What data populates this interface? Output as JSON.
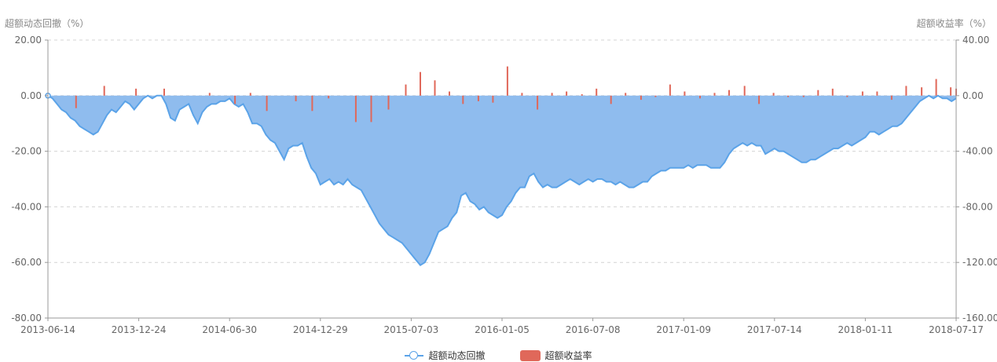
{
  "chart_data": {
    "type": "line",
    "left_axis": {
      "label": "超额动态回撤（%）",
      "ticks": [
        "20.00",
        "0.00",
        "-20.00",
        "-40.00",
        "-60.00",
        "-80.00"
      ],
      "range": [
        -80,
        20
      ]
    },
    "right_axis": {
      "label": "超额收益率（%）",
      "ticks": [
        "40.00",
        "0.00",
        "-40.00",
        "-80.00",
        "-120.00",
        "-160.00"
      ],
      "range": [
        -160,
        40
      ]
    },
    "x_ticks": [
      "2013-06-14",
      "2013-12-24",
      "2014-06-30",
      "2014-12-29",
      "2015-07-03",
      "2016-01-05",
      "2016-07-08",
      "2017-01-09",
      "2017-07-14",
      "2018-01-11",
      "2018-07-17"
    ],
    "grid": "horizontal-dashed",
    "legend_placement": "bottom-center",
    "series": [
      {
        "name": "超额动态回撤",
        "kind": "area",
        "axis": "left",
        "color": "#5ba3e8",
        "fill": "#8fbcee",
        "points": [
          [
            0,
            0
          ],
          [
            0.5,
            -1
          ],
          [
            1,
            -3
          ],
          [
            1.5,
            -5
          ],
          [
            2,
            -6
          ],
          [
            2.5,
            -8
          ],
          [
            3,
            -9
          ],
          [
            3.5,
            -11
          ],
          [
            4,
            -12
          ],
          [
            4.5,
            -13
          ],
          [
            5,
            -14
          ],
          [
            5.5,
            -13
          ],
          [
            6,
            -10
          ],
          [
            6.5,
            -7
          ],
          [
            7,
            -5
          ],
          [
            7.5,
            -6
          ],
          [
            8,
            -4
          ],
          [
            8.5,
            -2
          ],
          [
            9,
            -3
          ],
          [
            9.5,
            -5
          ],
          [
            10,
            -3
          ],
          [
            10.5,
            -1
          ],
          [
            11,
            0
          ],
          [
            11.5,
            -1
          ],
          [
            12,
            0
          ],
          [
            12.5,
            0
          ],
          [
            13,
            -3
          ],
          [
            13.5,
            -8
          ],
          [
            14,
            -9
          ],
          [
            14.5,
            -5
          ],
          [
            15,
            -4
          ],
          [
            15.5,
            -3
          ],
          [
            16,
            -7
          ],
          [
            16.5,
            -10
          ],
          [
            17,
            -6
          ],
          [
            17.5,
            -4
          ],
          [
            18,
            -3
          ],
          [
            18.5,
            -3
          ],
          [
            19,
            -2
          ],
          [
            19.5,
            -2
          ],
          [
            20,
            -1
          ],
          [
            20.5,
            -3
          ],
          [
            21,
            -4
          ],
          [
            21.5,
            -3
          ],
          [
            22,
            -6
          ],
          [
            22.5,
            -10
          ],
          [
            23,
            -10
          ],
          [
            23.5,
            -11
          ],
          [
            24,
            -14
          ],
          [
            24.5,
            -16
          ],
          [
            25,
            -17
          ],
          [
            25.5,
            -20
          ],
          [
            26,
            -23
          ],
          [
            26.5,
            -19
          ],
          [
            27,
            -18
          ],
          [
            27.5,
            -18
          ],
          [
            28,
            -17
          ],
          [
            28.5,
            -22
          ],
          [
            29,
            -26
          ],
          [
            29.5,
            -28
          ],
          [
            30,
            -32
          ],
          [
            30.5,
            -31
          ],
          [
            31,
            -30
          ],
          [
            31.5,
            -32
          ],
          [
            32,
            -31
          ],
          [
            32.5,
            -32
          ],
          [
            33,
            -30
          ],
          [
            33.5,
            -32
          ],
          [
            34,
            -33
          ],
          [
            34.5,
            -34
          ],
          [
            35,
            -37
          ],
          [
            35.5,
            -40
          ],
          [
            36,
            -43
          ],
          [
            36.5,
            -46
          ],
          [
            37,
            -48
          ],
          [
            37.5,
            -50
          ],
          [
            38,
            -51
          ],
          [
            38.5,
            -52
          ],
          [
            39,
            -53
          ],
          [
            39.5,
            -55
          ],
          [
            40,
            -57
          ],
          [
            40.5,
            -59
          ],
          [
            41,
            -61
          ],
          [
            41.5,
            -60
          ],
          [
            42,
            -57
          ],
          [
            42.5,
            -53
          ],
          [
            43,
            -49
          ],
          [
            43.5,
            -48
          ],
          [
            44,
            -47
          ],
          [
            44.5,
            -44
          ],
          [
            45,
            -42
          ],
          [
            45.5,
            -36
          ],
          [
            46,
            -35
          ],
          [
            46.5,
            -38
          ],
          [
            47,
            -39
          ],
          [
            47.5,
            -41
          ],
          [
            48,
            -40
          ],
          [
            48.5,
            -42
          ],
          [
            49,
            -43
          ],
          [
            49.5,
            -44
          ],
          [
            50,
            -43
          ],
          [
            50.5,
            -40
          ],
          [
            51,
            -38
          ],
          [
            51.5,
            -35
          ],
          [
            52,
            -33
          ],
          [
            52.5,
            -33
          ],
          [
            53,
            -29
          ],
          [
            53.5,
            -28
          ],
          [
            54,
            -31
          ],
          [
            54.5,
            -33
          ],
          [
            55,
            -32
          ],
          [
            55.5,
            -33
          ],
          [
            56,
            -33
          ],
          [
            56.5,
            -32
          ],
          [
            57,
            -31
          ],
          [
            57.5,
            -30
          ],
          [
            58,
            -31
          ],
          [
            58.5,
            -32
          ],
          [
            59,
            -31
          ],
          [
            59.5,
            -30
          ],
          [
            60,
            -31
          ],
          [
            60.5,
            -30
          ],
          [
            61,
            -30
          ],
          [
            61.5,
            -31
          ],
          [
            62,
            -31
          ],
          [
            62.5,
            -32
          ],
          [
            63,
            -31
          ],
          [
            63.5,
            -32
          ],
          [
            64,
            -33
          ],
          [
            64.5,
            -33
          ],
          [
            65,
            -32
          ],
          [
            65.5,
            -31
          ],
          [
            66,
            -31
          ],
          [
            66.5,
            -29
          ],
          [
            67,
            -28
          ],
          [
            67.5,
            -27
          ],
          [
            68,
            -27
          ],
          [
            68.5,
            -26
          ],
          [
            69,
            -26
          ],
          [
            69.5,
            -26
          ],
          [
            70,
            -26
          ],
          [
            70.5,
            -25
          ],
          [
            71,
            -26
          ],
          [
            71.5,
            -25
          ],
          [
            72,
            -25
          ],
          [
            72.5,
            -25
          ],
          [
            73,
            -26
          ],
          [
            73.5,
            -26
          ],
          [
            74,
            -26
          ],
          [
            74.5,
            -24
          ],
          [
            75,
            -21
          ],
          [
            75.5,
            -19
          ],
          [
            76,
            -18
          ],
          [
            76.5,
            -17
          ],
          [
            77,
            -18
          ],
          [
            77.5,
            -17
          ],
          [
            78,
            -18
          ],
          [
            78.5,
            -18
          ],
          [
            79,
            -21
          ],
          [
            79.5,
            -20
          ],
          [
            80,
            -19
          ],
          [
            80.5,
            -20
          ],
          [
            81,
            -20
          ],
          [
            81.5,
            -21
          ],
          [
            82,
            -22
          ],
          [
            82.5,
            -23
          ],
          [
            83,
            -24
          ],
          [
            83.5,
            -24
          ],
          [
            84,
            -23
          ],
          [
            84.5,
            -23
          ],
          [
            85,
            -22
          ],
          [
            85.5,
            -21
          ],
          [
            86,
            -20
          ],
          [
            86.5,
            -19
          ],
          [
            87,
            -19
          ],
          [
            87.5,
            -18
          ],
          [
            88,
            -17
          ],
          [
            88.5,
            -18
          ],
          [
            89,
            -17
          ],
          [
            89.5,
            -16
          ],
          [
            90,
            -15
          ],
          [
            90.5,
            -13
          ],
          [
            91,
            -13
          ],
          [
            91.5,
            -14
          ],
          [
            92,
            -13
          ],
          [
            92.5,
            -12
          ],
          [
            93,
            -11
          ],
          [
            93.5,
            -11
          ],
          [
            94,
            -10
          ],
          [
            94.5,
            -8
          ],
          [
            95,
            -6
          ],
          [
            95.5,
            -4
          ],
          [
            96,
            -2
          ],
          [
            96.5,
            -1
          ],
          [
            97,
            0
          ],
          [
            97.5,
            -1
          ],
          [
            98,
            0
          ],
          [
            98.5,
            -1
          ],
          [
            99,
            -1
          ],
          [
            99.5,
            -2
          ],
          [
            100,
            -1
          ]
        ]
      },
      {
        "name": "超额收益率",
        "kind": "bar",
        "axis": "right",
        "color": "#e0685a",
        "bars": [
          [
            3.1,
            -9
          ],
          [
            6.2,
            7
          ],
          [
            9.7,
            5
          ],
          [
            12.8,
            5
          ],
          [
            17.8,
            2
          ],
          [
            20.6,
            -6
          ],
          [
            22.3,
            2
          ],
          [
            24.1,
            -11
          ],
          [
            27.3,
            -4
          ],
          [
            29.1,
            -11
          ],
          [
            30.9,
            -2
          ],
          [
            33.9,
            -19
          ],
          [
            35.6,
            -19
          ],
          [
            37.5,
            -10
          ],
          [
            39.4,
            8
          ],
          [
            41,
            17
          ],
          [
            42.6,
            11
          ],
          [
            44.2,
            3
          ],
          [
            45.7,
            -6
          ],
          [
            47.4,
            -4
          ],
          [
            49,
            -5
          ],
          [
            50.6,
            21
          ],
          [
            52.2,
            2
          ],
          [
            53.9,
            -10
          ],
          [
            55.5,
            2
          ],
          [
            57.1,
            3
          ],
          [
            58.8,
            1
          ],
          [
            60.4,
            5
          ],
          [
            62,
            -6
          ],
          [
            63.6,
            2
          ],
          [
            65.3,
            -3
          ],
          [
            66.9,
            -1
          ],
          [
            68.5,
            8
          ],
          [
            70.1,
            3
          ],
          [
            71.8,
            -2
          ],
          [
            73.4,
            2
          ],
          [
            75,
            4
          ],
          [
            76.7,
            7
          ],
          [
            78.3,
            -6
          ],
          [
            79.9,
            2
          ],
          [
            81.5,
            -1
          ],
          [
            83.2,
            -1
          ],
          [
            84.8,
            4
          ],
          [
            86.4,
            5
          ],
          [
            88,
            -1
          ],
          [
            89.7,
            3
          ],
          [
            91.3,
            3
          ],
          [
            92.9,
            -3
          ],
          [
            94.5,
            7
          ],
          [
            96.2,
            6
          ],
          [
            97.8,
            12
          ],
          [
            99.4,
            6
          ],
          [
            100,
            5
          ]
        ]
      }
    ]
  }
}
